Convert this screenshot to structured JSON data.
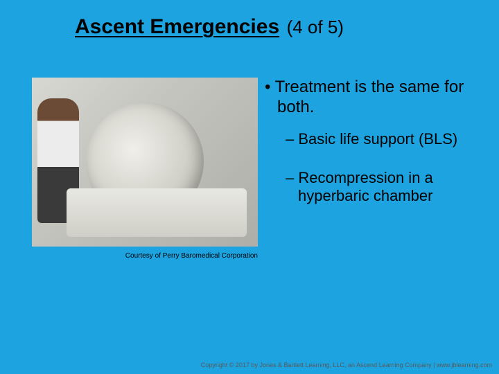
{
  "slide": {
    "title_main": "Ascent Emergencies",
    "title_sub": "(4 of 5)",
    "background_color": "#1ca3e0"
  },
  "image": {
    "caption": "Courtesy of Perry Baromedical Corporation",
    "alt": "hyperbaric-chamber-photo"
  },
  "content": {
    "main_bullet": "Treatment is the same for both.",
    "sub_bullets": [
      "Basic life support (BLS)",
      "Recompression in a hyperbaric chamber"
    ]
  },
  "footer": {
    "copyright": "Copyright © 2017 by Jones & Bartlett Learning, LLC, an Ascend Learning Company | www.jblearning.com"
  },
  "style": {
    "title_fontsize_pt": 30,
    "body_fontsize_pt": 24,
    "sub_fontsize_pt": 22,
    "caption_fontsize_pt": 10,
    "text_color": "#000000"
  }
}
